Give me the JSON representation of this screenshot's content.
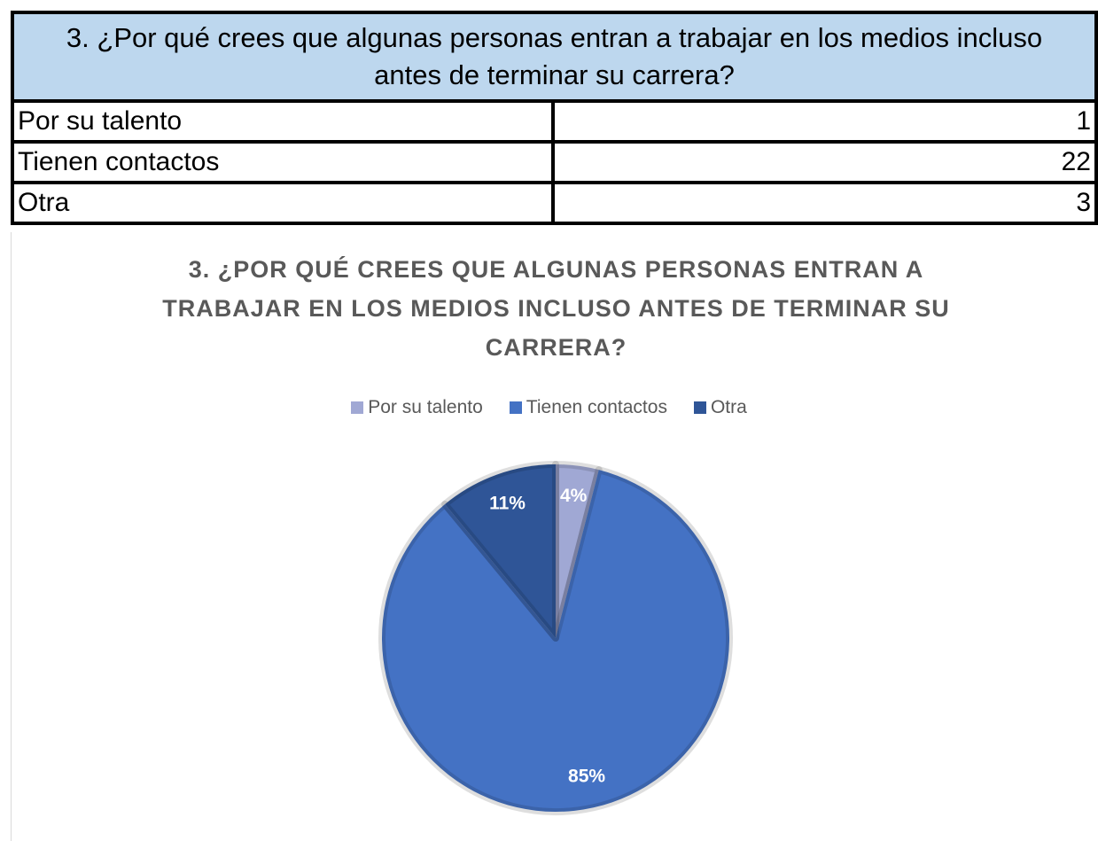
{
  "table": {
    "header": "3. ¿Por qué crees que algunas personas entran a trabajar en los medios incluso antes de terminar su carrera?",
    "rows": [
      [
        "Por su talento",
        1
      ],
      [
        "Tienen contactos",
        22
      ],
      [
        "Otra",
        3
      ]
    ]
  },
  "chart_data": {
    "type": "pie",
    "title": "3. ¿POR QUÉ CREES QUE ALGUNAS PERSONAS ENTRAN A TRABAJAR EN LOS MEDIOS INCLUSO ANTES DE TERMINAR SU CARRERA?",
    "categories": [
      "Por su talento",
      "Tienen contactos",
      "Otra"
    ],
    "values": [
      4,
      85,
      11
    ],
    "value_labels": [
      "4%",
      "85%",
      "11%"
    ],
    "colors": [
      "#a0a8d4",
      "#4472c4",
      "#2f5597"
    ],
    "legend": "top"
  }
}
